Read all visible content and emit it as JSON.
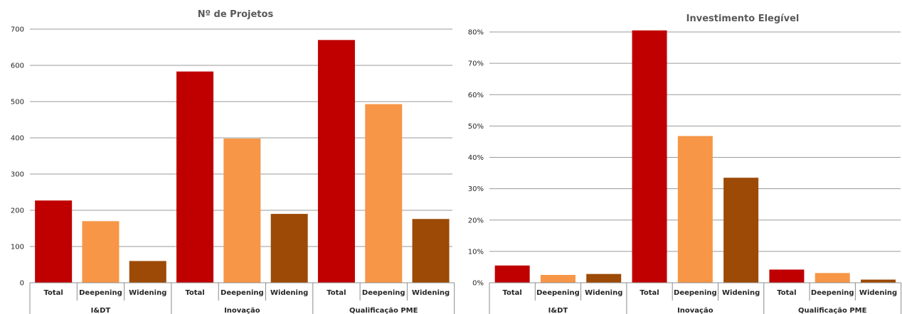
{
  "colors": {
    "Total": "#c00000",
    "Deepening": "#f79646",
    "Widening": "#9c4a06"
  },
  "chart_data": [
    {
      "type": "bar",
      "title": "Nº de Projetos",
      "groups": [
        "I&DT",
        "Inovação",
        "Qualificação PME"
      ],
      "categories": [
        "Total",
        "Deepening",
        "Widening"
      ],
      "values": [
        [
          227,
          170,
          60
        ],
        [
          583,
          398,
          190
        ],
        [
          670,
          493,
          176
        ]
      ],
      "ylim": [
        0,
        700
      ],
      "yticks": [
        0,
        100,
        200,
        300,
        400,
        500,
        600,
        700
      ],
      "ytick_labels": [
        "0",
        "100",
        "200",
        "300",
        "400",
        "500",
        "600",
        "700"
      ],
      "grid": true,
      "legend": false
    },
    {
      "type": "bar",
      "title": "Investimento Elegível",
      "groups": [
        "I&DT",
        "Inovação",
        "Qualificação PME"
      ],
      "categories": [
        "Total",
        "Deepening",
        "Widening"
      ],
      "values": [
        [
          5.5,
          2.5,
          2.8
        ],
        [
          80.5,
          46.8,
          33.5
        ],
        [
          4.2,
          3.1,
          1.0
        ]
      ],
      "ylim": [
        0,
        80
      ],
      "yticks": [
        0,
        10,
        20,
        30,
        40,
        50,
        60,
        70,
        80
      ],
      "ytick_labels": [
        "0%",
        "10%",
        "20%",
        "30%",
        "40%",
        "50%",
        "60%",
        "70%",
        "80%"
      ],
      "grid": true,
      "legend": false
    }
  ]
}
